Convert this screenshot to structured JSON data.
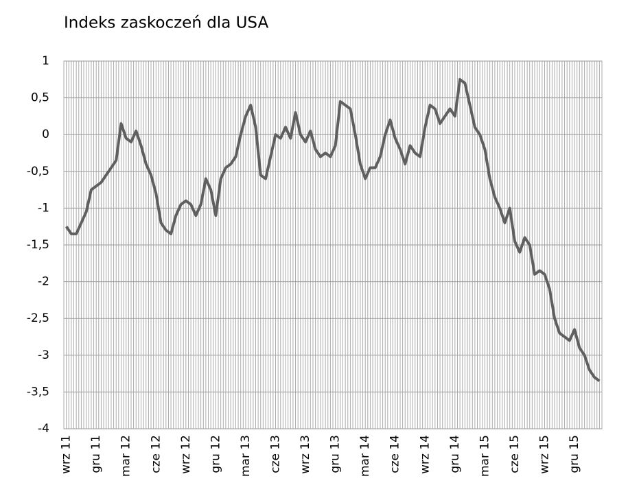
{
  "chart_data": {
    "type": "line",
    "title": "Indeks zaskoczeń dla USA",
    "categories": [
      "wrz 11",
      null,
      null,
      null,
      null,
      null,
      "gru 11",
      null,
      null,
      null,
      null,
      null,
      "mar 12",
      null,
      null,
      null,
      null,
      null,
      "cze 12",
      null,
      null,
      null,
      null,
      null,
      "wrz 12",
      null,
      null,
      null,
      null,
      null,
      "gru 12",
      null,
      null,
      null,
      null,
      null,
      "mar 13",
      null,
      null,
      null,
      null,
      null,
      "cze 13",
      null,
      null,
      null,
      null,
      null,
      "wrz 13",
      null,
      null,
      null,
      null,
      null,
      "gru 13",
      null,
      null,
      null,
      null,
      null,
      "mar 14",
      null,
      null,
      null,
      null,
      null,
      "cze 14",
      null,
      null,
      null,
      null,
      null,
      "wrz 14",
      null,
      null,
      null,
      null,
      null,
      "gru 14",
      null,
      null,
      null,
      null,
      null,
      "mar 15",
      null,
      null,
      null,
      null,
      null,
      "cze 15",
      null,
      null,
      null,
      null,
      null,
      "wrz 15",
      null,
      null,
      null,
      null,
      null,
      "gru 15",
      null,
      null,
      null,
      null,
      null
    ],
    "values": [
      -1.25,
      -1.35,
      -1.35,
      -1.2,
      -1.05,
      -0.75,
      -0.7,
      -0.65,
      -0.55,
      -0.45,
      -0.35,
      0.15,
      -0.05,
      -0.1,
      0.05,
      -0.15,
      -0.4,
      -0.55,
      -0.8,
      -1.2,
      -1.3,
      -1.35,
      -1.1,
      -0.95,
      -0.9,
      -0.95,
      -1.1,
      -0.95,
      -0.6,
      -0.75,
      -1.1,
      -0.6,
      -0.45,
      -0.4,
      -0.3,
      0.0,
      0.25,
      0.4,
      0.1,
      -0.55,
      -0.6,
      -0.3,
      0.0,
      -0.05,
      0.1,
      -0.05,
      0.3,
      0.0,
      -0.1,
      0.05,
      -0.2,
      -0.3,
      -0.25,
      -0.3,
      -0.15,
      0.45,
      0.4,
      0.35,
      0.0,
      -0.4,
      -0.6,
      -0.45,
      -0.45,
      -0.3,
      0.0,
      0.2,
      -0.05,
      -0.2,
      -0.4,
      -0.15,
      -0.25,
      -0.3,
      0.1,
      0.4,
      0.35,
      0.15,
      0.25,
      0.35,
      0.25,
      0.75,
      0.7,
      0.4,
      0.1,
      0.0,
      -0.2,
      -0.6,
      -0.85,
      -1.0,
      -1.2,
      -1.0,
      -1.45,
      -1.6,
      -1.4,
      -1.5,
      -1.9,
      -1.85,
      -1.9,
      -2.1,
      -2.5,
      -2.7,
      -2.75,
      -2.8,
      -2.65,
      -2.9,
      -3.0,
      -3.2,
      -3.3,
      -3.35
    ],
    "color": "#5f5f5f",
    "ylim": [
      -4,
      1
    ],
    "yticks": [
      -4,
      {
        "value": -3.5,
        "label": "-3,5"
      },
      -3,
      {
        "value": -2.5,
        "label": "-2,5"
      },
      -2,
      {
        "value": -1.5,
        "label": "-1,5"
      },
      -1,
      {
        "value": -0.5,
        "label": "-0,5"
      },
      0,
      {
        "value": 0.5,
        "label": "0,5"
      },
      1
    ],
    "grid": true
  }
}
